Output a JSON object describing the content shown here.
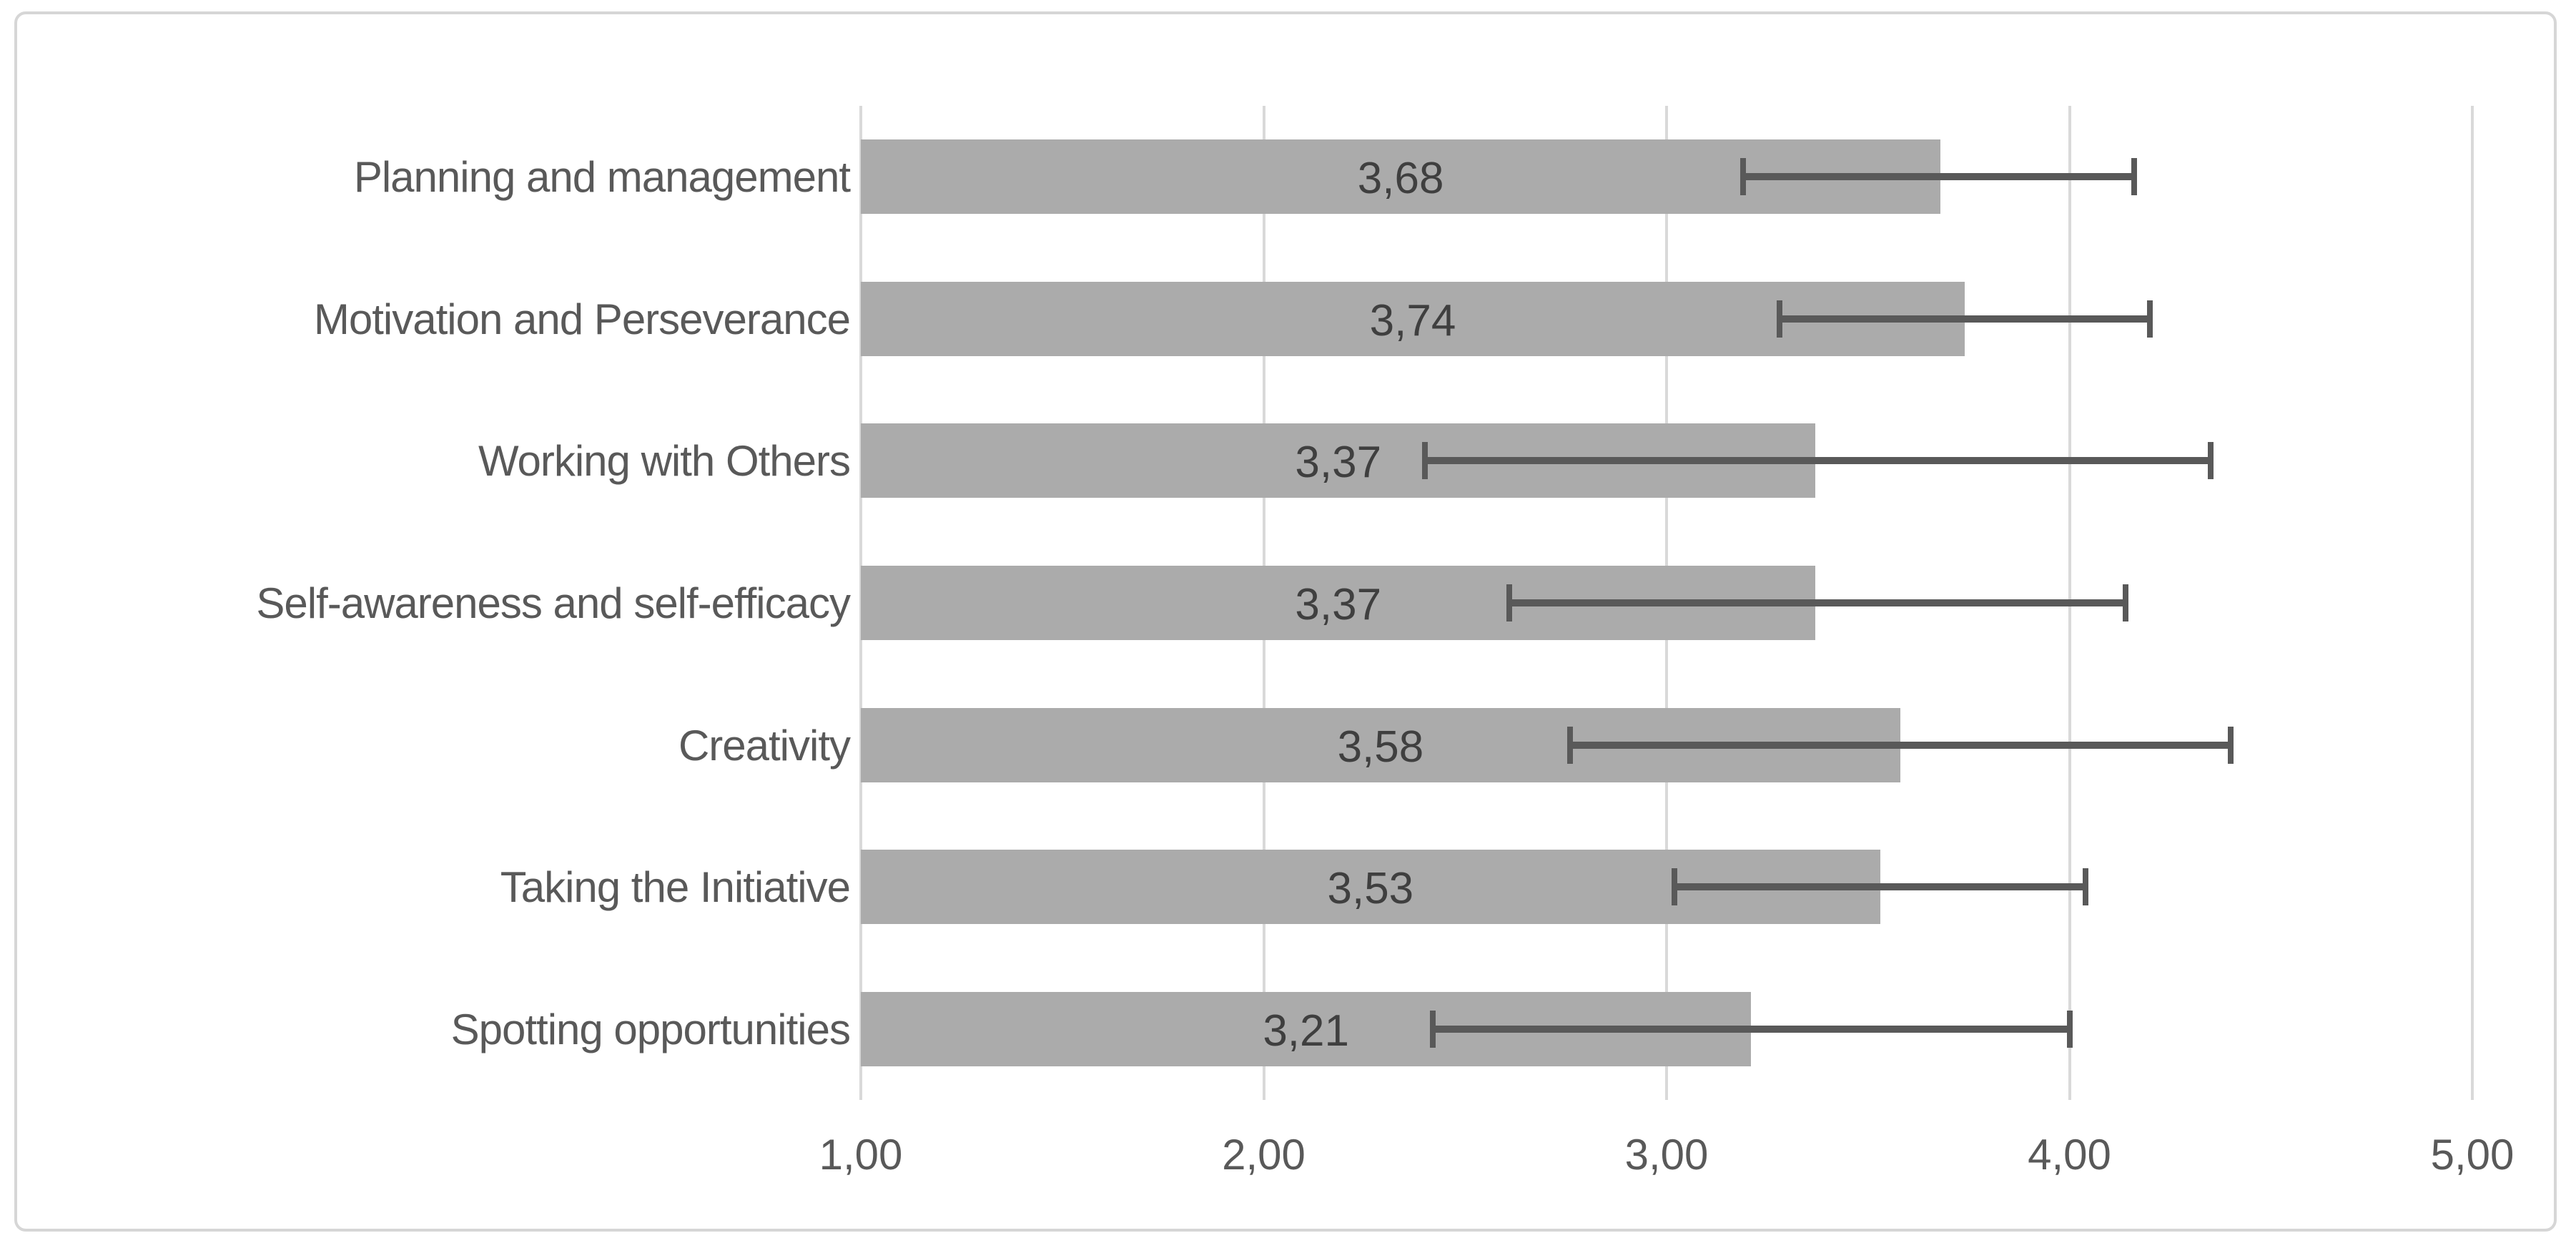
{
  "chart_data": {
    "type": "bar",
    "orientation": "horizontal",
    "title": "",
    "xlabel": "",
    "ylabel": "",
    "categories": [
      "Planning and management",
      "Motivation and Perseverance",
      "Working with Others",
      "Self-awareness and self-efficacy",
      "Creativity",
      "Taking the Initiative",
      "Spotting opportunities"
    ],
    "values": [
      3.68,
      3.74,
      3.37,
      3.37,
      3.58,
      3.53,
      3.21
    ],
    "value_labels": [
      "3,68",
      "3,74",
      "3,37",
      "3,37",
      "3,58",
      "3,53",
      "3,21"
    ],
    "error_low": [
      3.19,
      3.28,
      2.4,
      2.61,
      2.76,
      3.02,
      2.42
    ],
    "error_high": [
      4.16,
      4.2,
      4.35,
      4.14,
      4.4,
      4.04,
      4.0
    ],
    "xlim": [
      1.0,
      5.0
    ],
    "xticks": [
      1.0,
      2.0,
      3.0,
      4.0,
      5.0
    ],
    "xtick_labels": [
      "1,00",
      "2,00",
      "3,00",
      "4,00",
      "5,00"
    ],
    "grid": true,
    "legend": "none",
    "decimal_separator": ",",
    "colors": {
      "bar": "#ababab",
      "error_bar": "#595959",
      "gridline": "#d9d9d9",
      "axis_text": "#595959",
      "value_text": "#3f3f3f",
      "frame_border": "#d6d6d6",
      "background": "#ffffff"
    }
  }
}
